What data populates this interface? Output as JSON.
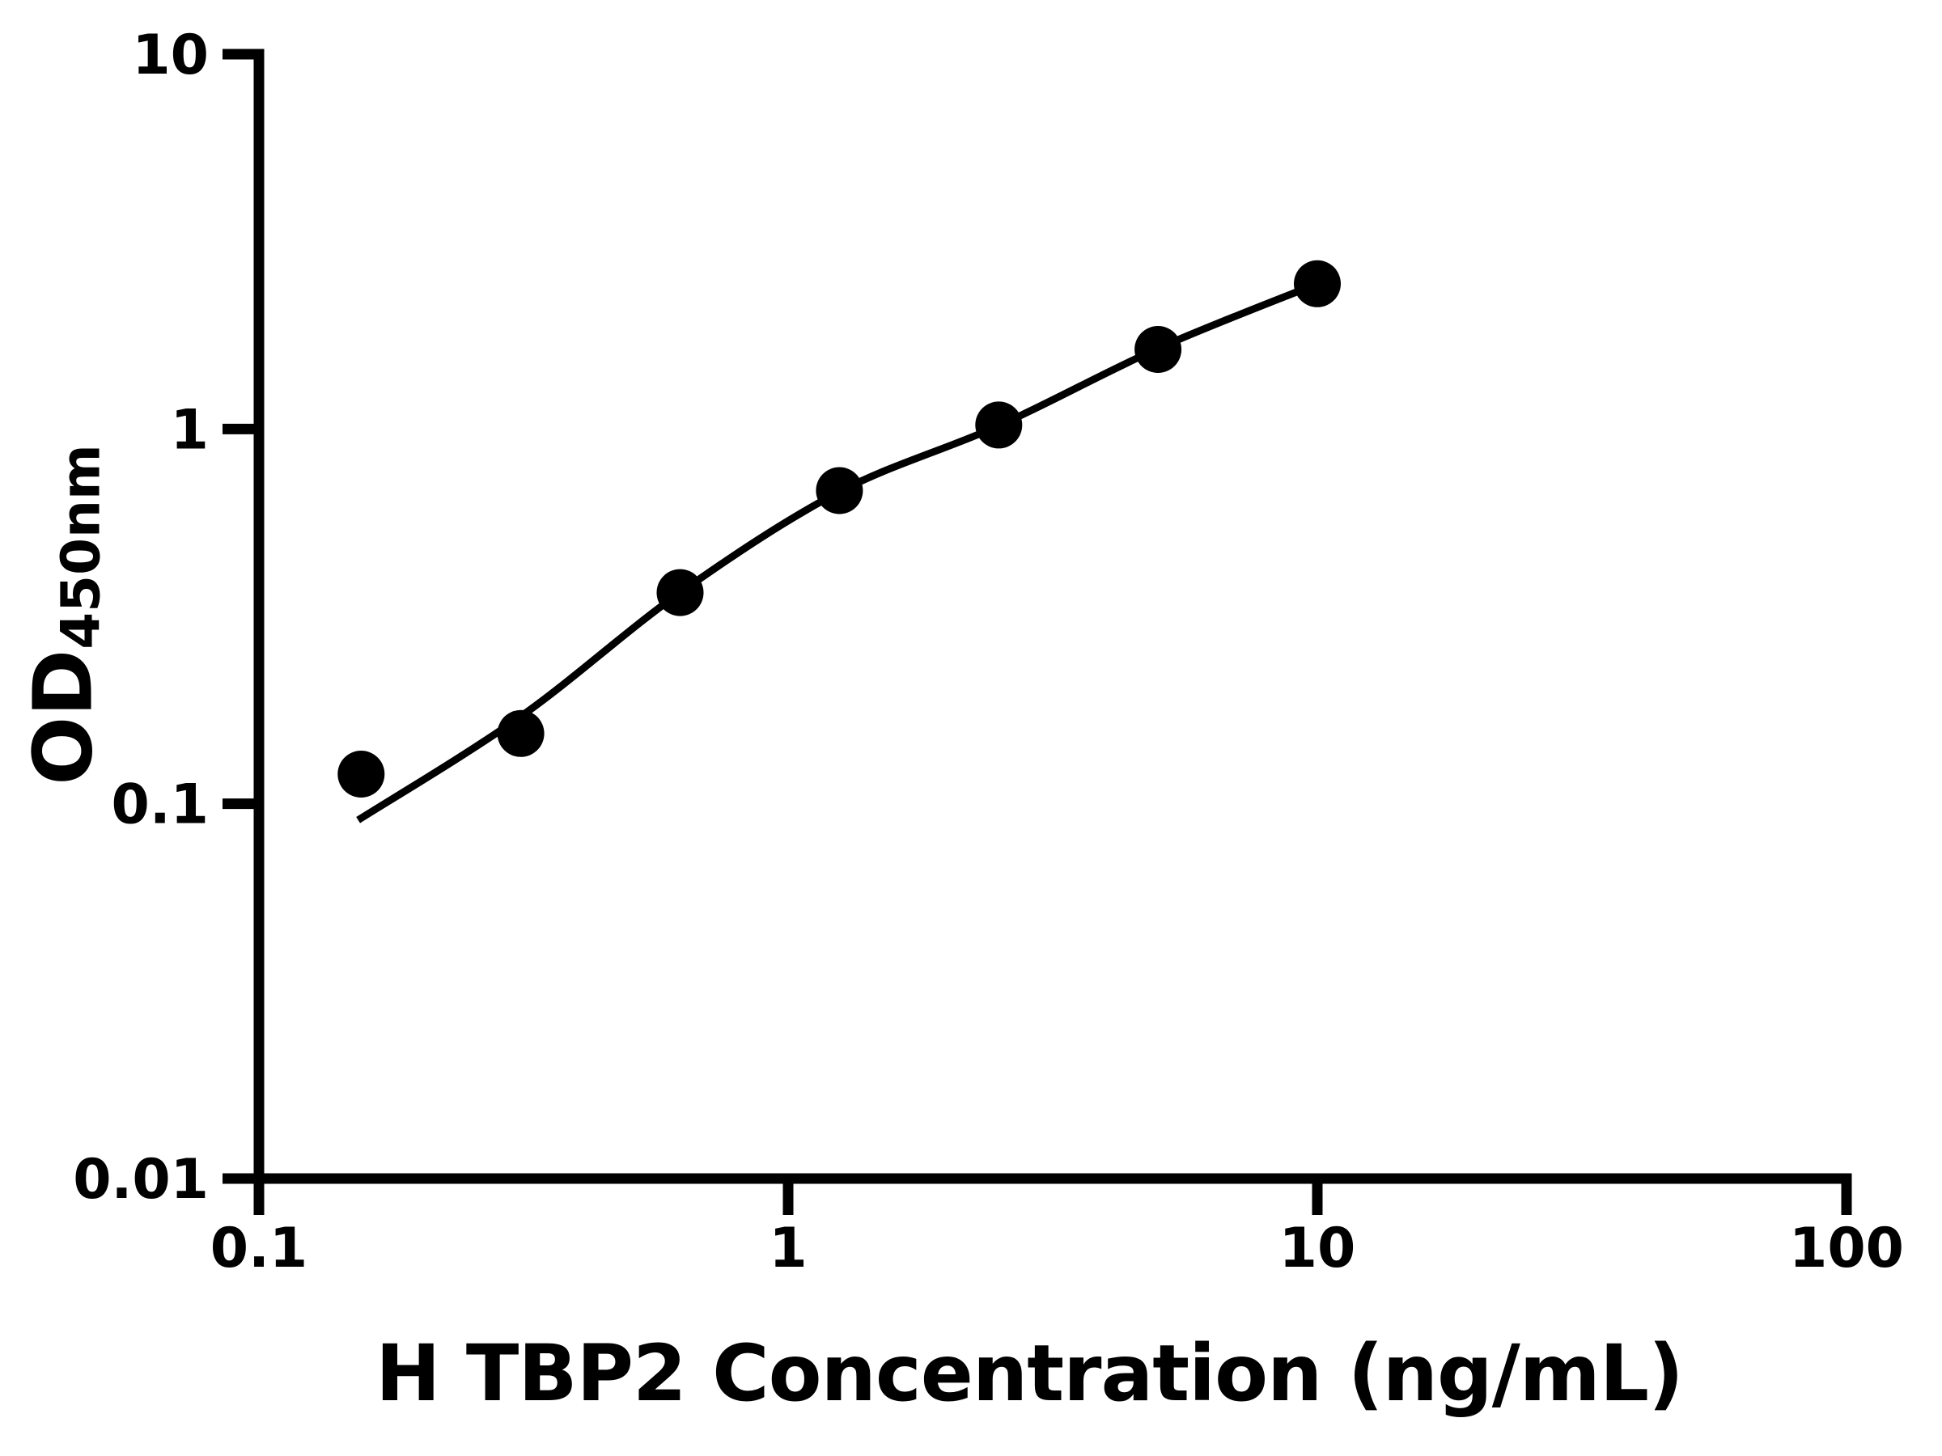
{
  "figure": {
    "background": "#ffffff",
    "foreground": "#000000"
  },
  "chart_data": {
    "type": "scatter",
    "title": "",
    "xlabel": "H TBP2 Concentration (ng/mL)",
    "ylabel": {
      "main": "OD",
      "sub": "450nm"
    },
    "x_scale": "log",
    "y_scale": "log",
    "xlim": [
      0.1,
      100
    ],
    "ylim": [
      0.01,
      10
    ],
    "grid": "off",
    "legend": "none",
    "x_ticks": [
      {
        "value": 0.1,
        "label": "0.1"
      },
      {
        "value": 1,
        "label": "1"
      },
      {
        "value": 10,
        "label": "10"
      },
      {
        "value": 100,
        "label": "100"
      }
    ],
    "y_ticks": [
      {
        "value": 0.01,
        "label": "0.01"
      },
      {
        "value": 0.1,
        "label": "0.1"
      },
      {
        "value": 1,
        "label": "1"
      },
      {
        "value": 10,
        "label": "10"
      }
    ],
    "series": [
      {
        "name": "standard-curve-points",
        "marker": "circle",
        "marker_color": "#000000",
        "points": [
          {
            "x": 0.156,
            "y": 0.12
          },
          {
            "x": 0.3125,
            "y": 0.154
          },
          {
            "x": 0.625,
            "y": 0.366
          },
          {
            "x": 1.25,
            "y": 0.685
          },
          {
            "x": 2.5,
            "y": 1.025
          },
          {
            "x": 5,
            "y": 1.63
          },
          {
            "x": 10,
            "y": 2.44
          }
        ]
      }
    ],
    "fit_curve": {
      "name": "four-parameter-fit",
      "color": "#000000",
      "anchors": [
        {
          "x": 0.154,
          "y": 0.0905
        },
        {
          "x": 0.3125,
          "y": 0.171
        },
        {
          "x": 0.625,
          "y": 0.366
        },
        {
          "x": 1.25,
          "y": 0.68
        },
        {
          "x": 2.5,
          "y": 1.02
        },
        {
          "x": 5,
          "y": 1.64
        },
        {
          "x": 10,
          "y": 2.44
        }
      ]
    }
  }
}
